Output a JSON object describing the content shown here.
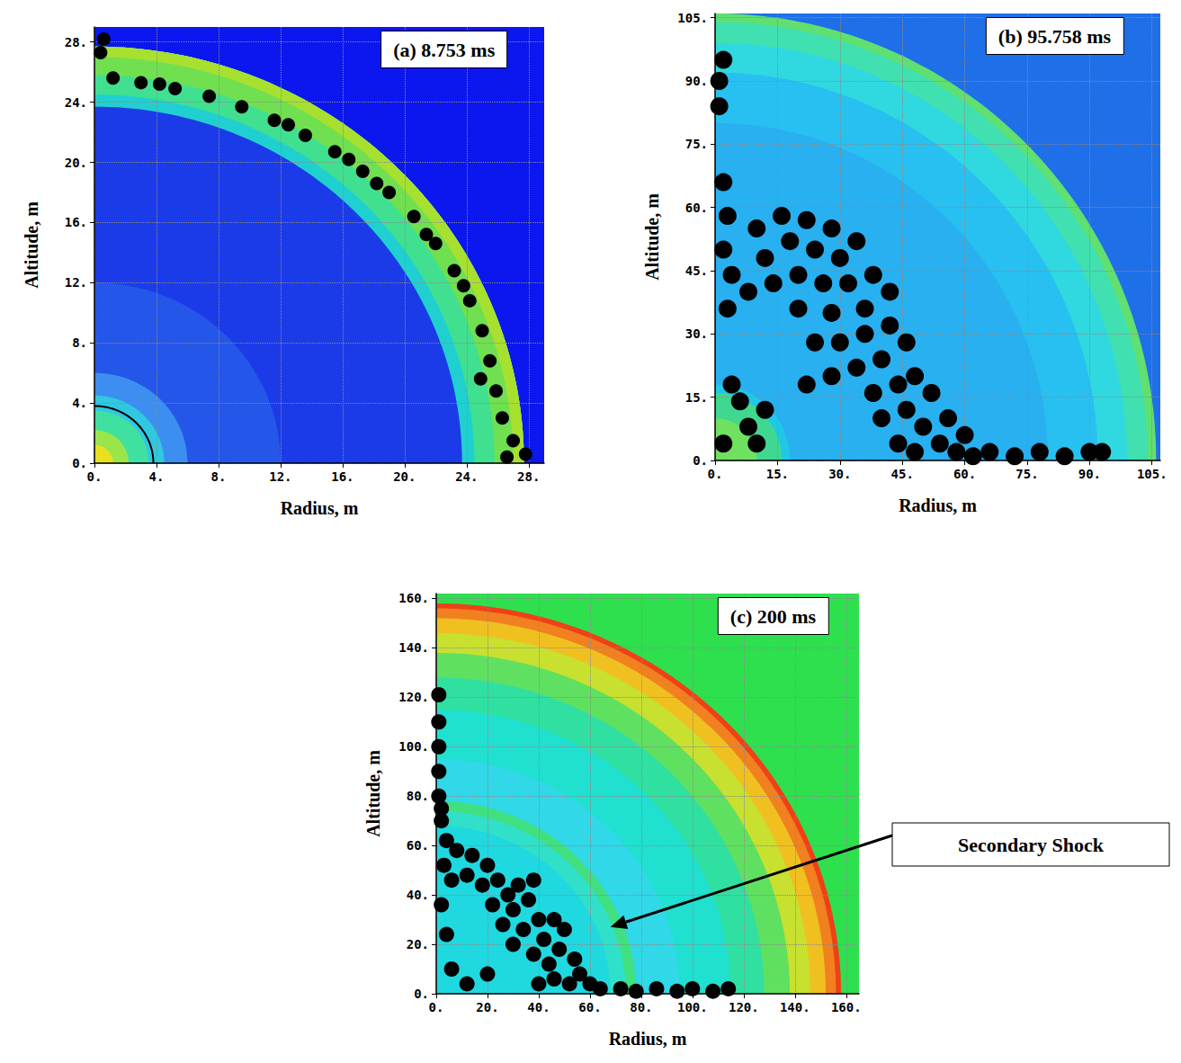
{
  "chart_data": [
    {
      "type": "scatter",
      "title": "(a) 8.753 ms",
      "x_label": "Radius, m",
      "y_label": "Altitude, m",
      "xlim": [
        0,
        29
      ],
      "ylim": [
        0,
        29
      ],
      "xticks": [
        {
          "value": 0,
          "label": "0."
        },
        {
          "value": 4,
          "label": "4."
        },
        {
          "value": 8,
          "label": "8."
        },
        {
          "value": 12,
          "label": "12."
        },
        {
          "value": 16,
          "label": "16."
        },
        {
          "value": 20,
          "label": "20."
        },
        {
          "value": 24,
          "label": "24."
        },
        {
          "value": 28,
          "label": "28."
        }
      ],
      "yticks": [
        {
          "value": 0,
          "label": "0."
        },
        {
          "value": 4,
          "label": "4."
        },
        {
          "value": 8,
          "label": "8."
        },
        {
          "value": 12,
          "label": "12."
        },
        {
          "value": 16,
          "label": "16."
        },
        {
          "value": 20,
          "label": "20."
        },
        {
          "value": 24,
          "label": "24."
        },
        {
          "value": 28,
          "label": "28."
        }
      ],
      "grid": true,
      "bands": [
        {
          "r": [
            0,
            45
          ],
          "color": "#0b17ee"
        },
        {
          "r": [
            0,
            23.7
          ],
          "color": "#1b3be8"
        },
        {
          "r": [
            0,
            12
          ],
          "color": "#2456ea"
        },
        {
          "r": [
            0,
            6
          ],
          "color": "#3c8ef0"
        },
        {
          "r": [
            0,
            4.5
          ],
          "color": "#30c8e0"
        },
        {
          "r": [
            0,
            3.5
          ],
          "color": "#3fe0a0"
        },
        {
          "r": [
            0,
            2.2
          ],
          "color": "#9ae64a"
        },
        {
          "r": [
            0,
            1.2
          ],
          "color": "#e8e020"
        },
        {
          "r": [
            23.7,
            27.7
          ],
          "color": "#20d0d0"
        },
        {
          "r": [
            24.5,
            27.7
          ],
          "color": "#40e090"
        },
        {
          "r": [
            25.8,
            27.7
          ],
          "color": "#70e050"
        },
        {
          "r": [
            27,
            27.7
          ],
          "color": "#a8e030"
        }
      ],
      "arcs": [
        {
          "r": 3.8,
          "color": "#000000"
        }
      ],
      "series": [
        {
          "type": "scatter",
          "color": "#000000",
          "marker": "circle",
          "values": [
            [
              27.8,
              0.6
            ],
            [
              27.0,
              1.5
            ],
            [
              26.3,
              3.0
            ],
            [
              25.9,
              4.8
            ],
            [
              25.5,
              6.8
            ],
            [
              25.0,
              8.8
            ],
            [
              24.2,
              10.8
            ],
            [
              23.2,
              12.8
            ],
            [
              22.0,
              14.6
            ],
            [
              20.6,
              16.4
            ],
            [
              19.0,
              18.0
            ],
            [
              17.3,
              19.4
            ],
            [
              15.5,
              20.7
            ],
            [
              13.6,
              21.8
            ],
            [
              11.6,
              22.8
            ],
            [
              9.5,
              23.7
            ],
            [
              7.4,
              24.4
            ],
            [
              5.2,
              24.9
            ],
            [
              3.0,
              25.3
            ],
            [
              1.2,
              25.6
            ],
            [
              0.4,
              27.3
            ],
            [
              0.6,
              28.2
            ],
            [
              26.6,
              0.4
            ],
            [
              24.9,
              5.6
            ],
            [
              21.4,
              15.2
            ],
            [
              18.2,
              18.6
            ],
            [
              12.5,
              22.5
            ],
            [
              4.2,
              25.2
            ],
            [
              16.4,
              20.2
            ],
            [
              23.8,
              11.8
            ]
          ]
        }
      ]
    },
    {
      "type": "scatter",
      "title": "(b) 95.758 ms",
      "x_label": "Radius, m",
      "y_label": "Altitude, m",
      "xlim": [
        0,
        107
      ],
      "ylim": [
        0,
        106
      ],
      "xticks": [
        {
          "value": 0,
          "label": "0."
        },
        {
          "value": 15,
          "label": "15."
        },
        {
          "value": 30,
          "label": "30."
        },
        {
          "value": 45,
          "label": "45."
        },
        {
          "value": 60,
          "label": "60."
        },
        {
          "value": 75,
          "label": "75."
        },
        {
          "value": 90,
          "label": "90."
        },
        {
          "value": 105,
          "label": "105."
        }
      ],
      "yticks": [
        {
          "value": 0,
          "label": "0."
        },
        {
          "value": 15,
          "label": "15."
        },
        {
          "value": 30,
          "label": "30."
        },
        {
          "value": 45,
          "label": "45."
        },
        {
          "value": 60,
          "label": "60."
        },
        {
          "value": 75,
          "label": "75."
        },
        {
          "value": 90,
          "label": "90."
        },
        {
          "value": 105,
          "label": "105."
        }
      ],
      "grid": true,
      "bands": [
        {
          "r": [
            0,
            155
          ],
          "color": "#1f6fe8"
        },
        {
          "r": [
            0,
            106
          ],
          "color": "#60e070"
        },
        {
          "r": [
            0,
            104
          ],
          "color": "#40e0b0"
        },
        {
          "r": [
            0,
            99
          ],
          "color": "#30d8e0"
        },
        {
          "r": [
            0,
            92
          ],
          "color": "#28c0f0"
        },
        {
          "r": [
            0,
            80
          ],
          "color": "#28b0f0"
        },
        {
          "r": [
            0,
            18
          ],
          "color": "#20c8e8"
        },
        {
          "r": [
            0,
            16
          ],
          "color": "#40d890"
        },
        {
          "r": [
            0,
            10
          ],
          "color": "#70e060"
        }
      ],
      "series": [
        {
          "type": "scatter",
          "color": "#000000",
          "marker": "circle",
          "values": [
            [
              2,
              66
            ],
            [
              3,
              58
            ],
            [
              2,
              50
            ],
            [
              4,
              44
            ],
            [
              3,
              36
            ],
            [
              8,
              40
            ],
            [
              10,
              55
            ],
            [
              12,
              48
            ],
            [
              16,
              58
            ],
            [
              18,
              52
            ],
            [
              22,
              57
            ],
            [
              24,
              50
            ],
            [
              28,
              55
            ],
            [
              30,
              48
            ],
            [
              34,
              52
            ],
            [
              14,
              42
            ],
            [
              20,
              44
            ],
            [
              26,
              42
            ],
            [
              32,
              42
            ],
            [
              38,
              44
            ],
            [
              42,
              40
            ],
            [
              36,
              36
            ],
            [
              28,
              35
            ],
            [
              20,
              36
            ],
            [
              24,
              28
            ],
            [
              30,
              28
            ],
            [
              36,
              30
            ],
            [
              42,
              32
            ],
            [
              46,
              28
            ],
            [
              40,
              24
            ],
            [
              34,
              22
            ],
            [
              28,
              20
            ],
            [
              22,
              18
            ],
            [
              38,
              16
            ],
            [
              44,
              18
            ],
            [
              48,
              20
            ],
            [
              52,
              16
            ],
            [
              46,
              12
            ],
            [
              40,
              10
            ],
            [
              50,
              8
            ],
            [
              56,
              10
            ],
            [
              54,
              4
            ],
            [
              60,
              6
            ],
            [
              58,
              2
            ],
            [
              44,
              4
            ],
            [
              48,
              2
            ],
            [
              62,
              1
            ],
            [
              66,
              2
            ],
            [
              72,
              1
            ],
            [
              78,
              2
            ],
            [
              84,
              1
            ],
            [
              90,
              2
            ],
            [
              93,
              2
            ],
            [
              1,
              90
            ],
            [
              2,
              95
            ],
            [
              1,
              84
            ],
            [
              6,
              14
            ],
            [
              8,
              8
            ],
            [
              10,
              4
            ],
            [
              4,
              18
            ],
            [
              12,
              12
            ],
            [
              2,
              4
            ]
          ]
        }
      ]
    },
    {
      "type": "scatter",
      "title": "(c) 200 ms",
      "x_label": "Radius, m",
      "y_label": "Altitude, m",
      "xlim": [
        0,
        165
      ],
      "ylim": [
        0,
        162
      ],
      "xticks": [
        {
          "value": 0,
          "label": "0."
        },
        {
          "value": 20,
          "label": "20."
        },
        {
          "value": 40,
          "label": "40."
        },
        {
          "value": 60,
          "label": "60."
        },
        {
          "value": 80,
          "label": "80."
        },
        {
          "value": 100,
          "label": "100."
        },
        {
          "value": 120,
          "label": "120."
        },
        {
          "value": 140,
          "label": "140."
        },
        {
          "value": 160,
          "label": "160."
        }
      ],
      "yticks": [
        {
          "value": 0,
          "label": "0."
        },
        {
          "value": 20,
          "label": "20."
        },
        {
          "value": 40,
          "label": "40."
        },
        {
          "value": 60,
          "label": "60."
        },
        {
          "value": 80,
          "label": "80."
        },
        {
          "value": 100,
          "label": "100."
        },
        {
          "value": 120,
          "label": "120."
        },
        {
          "value": 140,
          "label": "140."
        },
        {
          "value": 160,
          "label": "160."
        }
      ],
      "grid": true,
      "bands": [
        {
          "r": [
            0,
            235
          ],
          "color": "#2ee04e"
        },
        {
          "r": [
            0,
            158
          ],
          "color": "#f04018"
        },
        {
          "r": [
            0,
            156
          ],
          "color": "#f08020"
        },
        {
          "r": [
            0,
            152
          ],
          "color": "#f0c020"
        },
        {
          "r": [
            0,
            146
          ],
          "color": "#c8e030"
        },
        {
          "r": [
            0,
            138
          ],
          "color": "#60e060"
        },
        {
          "r": [
            0,
            128
          ],
          "color": "#30e0a0"
        },
        {
          "r": [
            0,
            115
          ],
          "color": "#20e0d0"
        },
        {
          "r": [
            0,
            95
          ],
          "color": "#30d8e8"
        },
        {
          "r": [
            0,
            78
          ],
          "color": "#40e080"
        },
        {
          "r": [
            0,
            74
          ],
          "color": "#30e0c8"
        },
        {
          "r": [
            0,
            68
          ],
          "color": "#20d8e0"
        }
      ],
      "series": [
        {
          "type": "scatter",
          "color": "#000000",
          "marker": "circle",
          "values": [
            [
              2,
              70
            ],
            [
              4,
              62
            ],
            [
              8,
              58
            ],
            [
              14,
              56
            ],
            [
              20,
              52
            ],
            [
              3,
              52
            ],
            [
              6,
              46
            ],
            [
              12,
              48
            ],
            [
              18,
              44
            ],
            [
              24,
              46
            ],
            [
              28,
              40
            ],
            [
              22,
              36
            ],
            [
              30,
              34
            ],
            [
              36,
              38
            ],
            [
              40,
              30
            ],
            [
              34,
              26
            ],
            [
              42,
              22
            ],
            [
              46,
              30
            ],
            [
              48,
              18
            ],
            [
              44,
              12
            ],
            [
              38,
              16
            ],
            [
              30,
              20
            ],
            [
              26,
              28
            ],
            [
              32,
              44
            ],
            [
              38,
              46
            ],
            [
              50,
              26
            ],
            [
              54,
              14
            ],
            [
              56,
              8
            ],
            [
              60,
              4
            ],
            [
              52,
              4
            ],
            [
              46,
              6
            ],
            [
              40,
              4
            ],
            [
              20,
              8
            ],
            [
              12,
              4
            ],
            [
              6,
              10
            ],
            [
              4,
              24
            ],
            [
              2,
              36
            ],
            [
              64,
              2
            ],
            [
              72,
              2
            ],
            [
              78,
              1
            ],
            [
              86,
              2
            ],
            [
              94,
              1
            ],
            [
              100,
              2
            ],
            [
              108,
              1
            ],
            [
              114,
              2
            ],
            [
              1,
              80
            ],
            [
              1,
              90
            ],
            [
              1,
              100
            ],
            [
              1,
              110
            ],
            [
              1,
              121
            ],
            [
              2,
              75
            ]
          ]
        }
      ],
      "annotations": [
        {
          "text": "Secondary Shock",
          "x": 68,
          "y": 27
        }
      ]
    }
  ]
}
